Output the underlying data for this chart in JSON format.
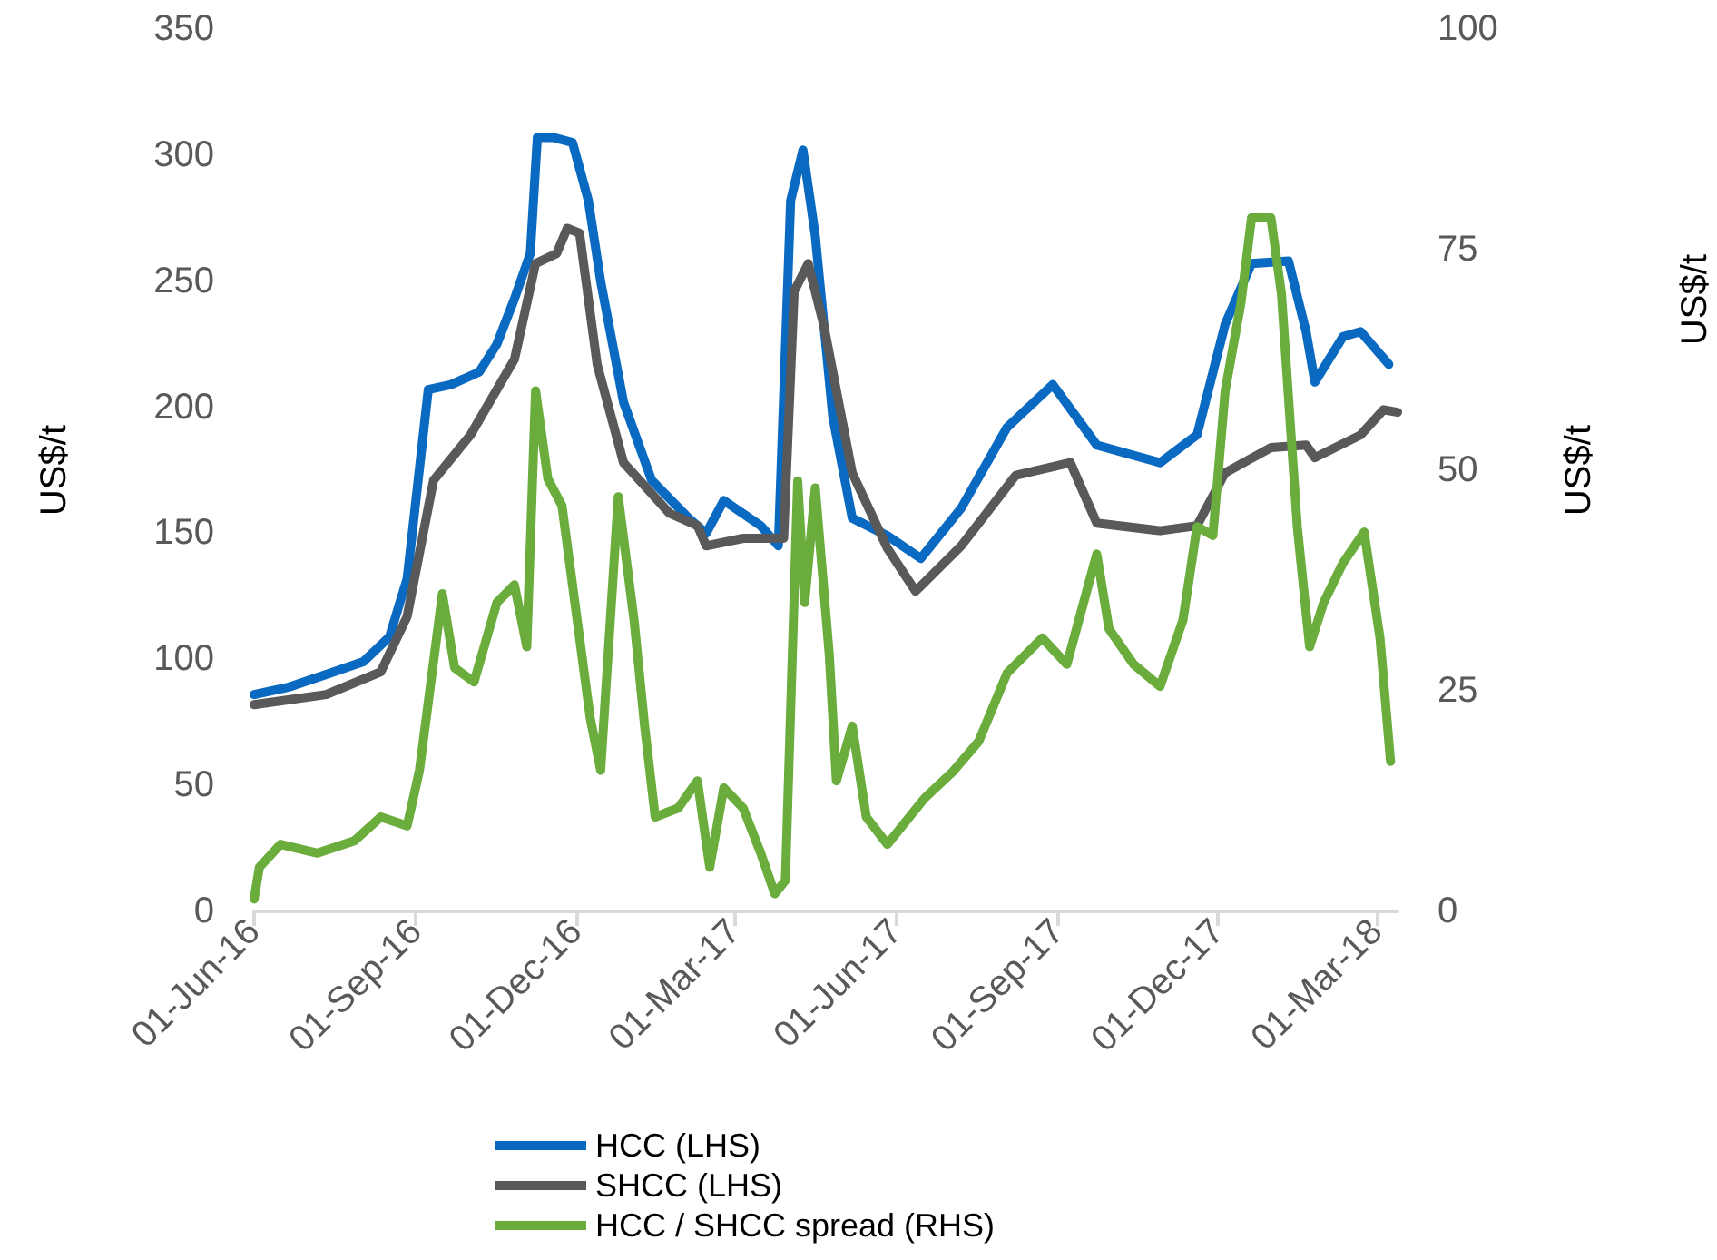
{
  "chart_data": {
    "type": "line",
    "ylabel": "US$/t",
    "y2label": "US$/t",
    "annotations": [
      "US$/t"
    ],
    "xlim": [
      "2016-06-01",
      "2018-03-13"
    ],
    "xticks": [
      {
        "value": "2016-06-01",
        "label": "01-Jun-16"
      },
      {
        "value": "2016-09-01",
        "label": "01-Sep-16"
      },
      {
        "value": "2016-12-01",
        "label": "01-Dec-16"
      },
      {
        "value": "2017-03-01",
        "label": "01-Mar-17"
      },
      {
        "value": "2017-06-01",
        "label": "01-Jun-17"
      },
      {
        "value": "2017-09-01",
        "label": "01-Sep-17"
      },
      {
        "value": "2017-12-01",
        "label": "01-Dec-17"
      },
      {
        "value": "2018-03-01",
        "label": "01-Mar-18"
      }
    ],
    "ylim": [
      0,
      350
    ],
    "yticks": [
      0,
      50,
      100,
      150,
      200,
      250,
      300,
      350
    ],
    "y2lim": [
      0,
      100
    ],
    "y2ticks": [
      0,
      25,
      50,
      75,
      100
    ],
    "grid": false,
    "legend": "bottom",
    "marker": "none",
    "line_style": "solid",
    "series": [
      {
        "name": "HCC (LHS)",
        "color": "#0a6ac2",
        "x": [
          "2016-06-01",
          "2016-06-21",
          "2016-07-12",
          "2016-08-02",
          "2016-08-17",
          "2016-08-27",
          "2016-09-08",
          "2016-09-21",
          "2016-10-07",
          "2016-10-17",
          "2016-10-27",
          "2016-11-05",
          "2016-11-09",
          "2016-11-18",
          "2016-11-29",
          "2016-12-08",
          "2016-12-15",
          "2016-12-28",
          "2017-01-13",
          "2017-02-03",
          "2017-02-13",
          "2017-02-23",
          "2017-03-16",
          "2017-03-26",
          "2017-04-02",
          "2017-04-09",
          "2017-04-16",
          "2017-04-26",
          "2017-05-07",
          "2017-05-27",
          "2017-06-15",
          "2017-07-08",
          "2017-08-03",
          "2017-08-29",
          "2017-09-23",
          "2017-10-29",
          "2017-11-19",
          "2017-12-05",
          "2017-12-20",
          "2018-01-10",
          "2018-01-20",
          "2018-01-25",
          "2018-02-10",
          "2018-02-20",
          "2018-03-08"
        ],
        "values": [
          86,
          89,
          94,
          99,
          109,
          132,
          207,
          209,
          214,
          225,
          243,
          261,
          307,
          307,
          305,
          282,
          250,
          202,
          171,
          156,
          150,
          163,
          153,
          145,
          282,
          302,
          268,
          196,
          156,
          149,
          140,
          160,
          192,
          209,
          185,
          178,
          189,
          233,
          257,
          258,
          230,
          210,
          228,
          230,
          217
        ]
      },
      {
        "name": "SHCC (LHS)",
        "color": "#595959",
        "x": [
          "2016-06-01",
          "2016-07-12",
          "2016-08-12",
          "2016-08-27",
          "2016-09-11",
          "2016-10-02",
          "2016-10-27",
          "2016-11-08",
          "2016-11-20",
          "2016-11-26",
          "2016-12-03",
          "2016-12-13",
          "2016-12-28",
          "2017-01-23",
          "2017-02-08",
          "2017-02-13",
          "2017-03-06",
          "2017-03-29",
          "2017-04-04",
          "2017-04-12",
          "2017-04-21",
          "2017-05-07",
          "2017-05-27",
          "2017-06-12",
          "2017-07-08",
          "2017-08-08",
          "2017-09-08",
          "2017-09-23",
          "2017-10-29",
          "2017-11-19",
          "2017-12-05",
          "2017-12-31",
          "2018-01-20",
          "2018-01-25",
          "2018-02-20",
          "2018-03-05",
          "2018-03-13"
        ],
        "values": [
          82,
          86,
          95,
          117,
          171,
          189,
          219,
          257,
          261,
          271,
          269,
          217,
          178,
          158,
          153,
          145,
          148,
          148,
          246,
          257,
          232,
          174,
          144,
          127,
          145,
          173,
          178,
          154,
          151,
          153,
          174,
          184,
          185,
          180,
          189,
          199,
          198
        ]
      },
      {
        "name": "HCC / SHCC spread (RHS)",
        "color": "#6aad3d",
        "axis": "y2",
        "x": [
          "2016-06-01",
          "2016-06-04",
          "2016-06-16",
          "2016-07-07",
          "2016-07-28",
          "2016-08-12",
          "2016-08-27",
          "2016-09-03",
          "2016-09-16",
          "2016-09-23",
          "2016-10-04",
          "2016-10-17",
          "2016-10-27",
          "2016-11-03",
          "2016-11-08",
          "2016-11-15",
          "2016-11-23",
          "2016-12-01",
          "2016-12-09",
          "2016-12-15",
          "2016-12-25",
          "2017-01-03",
          "2017-01-09",
          "2017-01-15",
          "2017-01-28",
          "2017-02-08",
          "2017-02-15",
          "2017-02-23",
          "2017-03-06",
          "2017-03-16",
          "2017-03-24",
          "2017-03-30",
          "2017-04-06",
          "2017-04-10",
          "2017-04-16",
          "2017-04-24",
          "2017-04-28",
          "2017-05-07",
          "2017-05-15",
          "2017-05-27",
          "2017-06-17",
          "2017-07-03",
          "2017-07-18",
          "2017-08-03",
          "2017-08-23",
          "2017-09-06",
          "2017-09-23",
          "2017-09-30",
          "2017-10-14",
          "2017-10-29",
          "2017-11-11",
          "2017-11-19",
          "2017-11-28",
          "2017-12-05",
          "2017-12-14",
          "2017-12-20",
          "2017-12-31",
          "2018-01-06",
          "2018-01-15",
          "2018-01-22",
          "2018-01-30",
          "2018-02-10",
          "2018-02-22",
          "2018-03-03",
          "2018-03-09"
        ],
        "values": [
          1.4,
          5,
          7.6,
          6.6,
          8,
          10.7,
          9.7,
          16,
          36,
          27.6,
          26,
          35,
          37,
          30,
          59,
          49,
          46,
          34,
          22,
          16,
          47,
          33,
          21,
          10.7,
          11.7,
          14.8,
          5,
          14,
          11.7,
          6.6,
          2,
          3.5,
          48.8,
          35,
          48,
          29,
          14.8,
          21,
          10.7,
          7.6,
          12.8,
          15.8,
          19.3,
          27,
          31,
          28,
          40.5,
          32,
          28,
          25.5,
          33,
          43.6,
          42.6,
          59,
          69,
          78.6,
          78.6,
          70,
          43.6,
          30,
          35,
          39.5,
          43,
          31,
          17
        ]
      }
    ]
  }
}
